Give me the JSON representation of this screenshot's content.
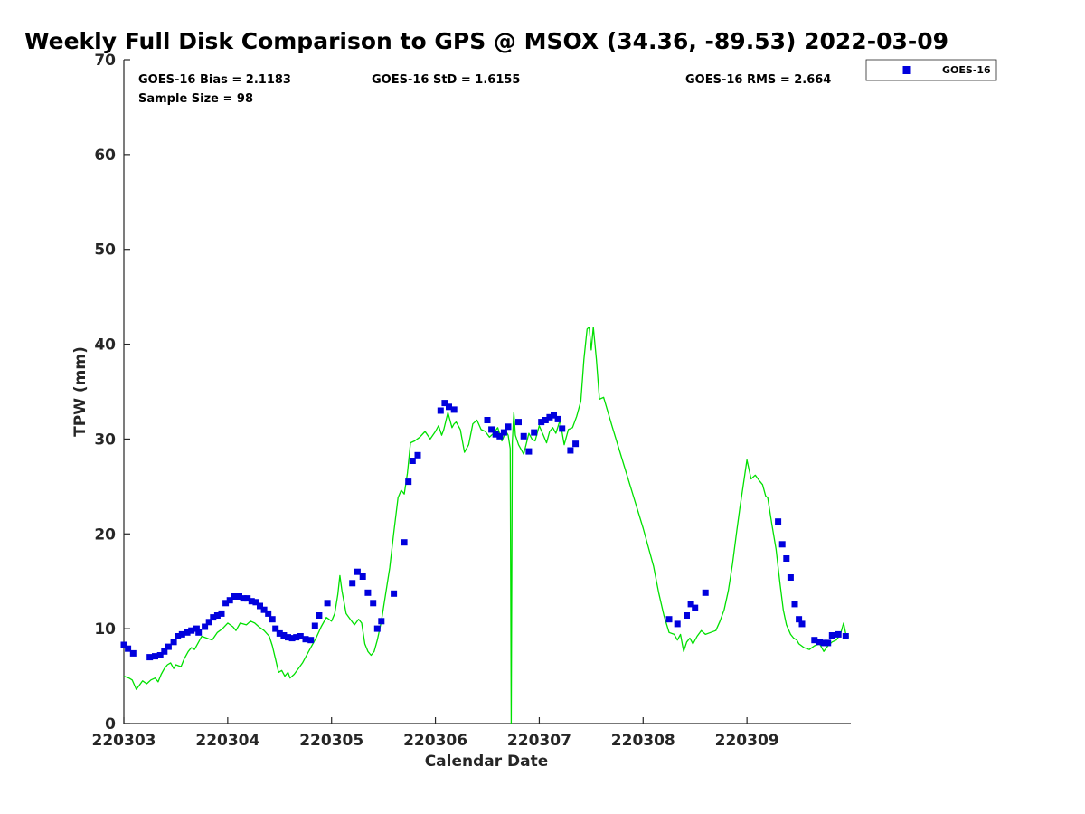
{
  "chart_data": {
    "type": "scatter",
    "title": "Weekly Full Disk Comparison to GPS @ MSOX (34.36, -89.53) 2022-03-09",
    "xlabel": "Calendar Date",
    "ylabel": "TPW (mm)",
    "xlim": [
      220303,
      220310
    ],
    "ylim": [
      0,
      70
    ],
    "xticks": [
      220303,
      220304,
      220305,
      220306,
      220307,
      220308,
      220309
    ],
    "xtick_labels": [
      "220303",
      "220304",
      "220305",
      "220306",
      "220307",
      "220308",
      "220309"
    ],
    "yticks": [
      0,
      10,
      20,
      30,
      40,
      50,
      60,
      70
    ],
    "ytick_labels": [
      "0",
      "10",
      "20",
      "30",
      "40",
      "50",
      "60",
      "70"
    ],
    "grid": false,
    "legend": {
      "placement": "outside-top-right",
      "entries": [
        "GOES-16"
      ]
    },
    "colors": {
      "goes16": "#0000dd",
      "gps": "#00e000"
    },
    "stats": {
      "bias": "GOES-16 Bias = 2.1183",
      "std": "GOES-16 StD = 1.6155",
      "rms": "GOES-16 RMS = 2.664",
      "sample": "Sample Size = 98"
    },
    "series": [
      {
        "name": "GOES-16",
        "style": "square-markers",
        "x": [
          220303.0,
          220303.04,
          220303.09,
          220303.25,
          220303.3,
          220303.35,
          220303.39,
          220303.43,
          220303.48,
          220303.52,
          220303.56,
          220303.61,
          220303.65,
          220303.7,
          220303.72,
          220303.78,
          220303.82,
          220303.86,
          220303.9,
          220303.94,
          220303.98,
          220304.02,
          220304.06,
          220304.11,
          220304.15,
          220304.19,
          220304.23,
          220304.27,
          220304.31,
          220304.35,
          220304.39,
          220304.43,
          220304.46,
          220304.5,
          220304.54,
          220304.58,
          220304.62,
          220304.66,
          220304.7,
          220304.75,
          220304.8,
          220304.84,
          220304.88,
          220304.96,
          220305.2,
          220305.25,
          220305.3,
          220305.35,
          220305.4,
          220305.44,
          220305.48,
          220305.6,
          220305.7,
          220305.74,
          220305.78,
          220305.83,
          220306.05,
          220306.09,
          220306.13,
          220306.18,
          220306.5,
          220306.54,
          220306.58,
          220306.62,
          220306.66,
          220306.7,
          220306.8,
          220306.85,
          220306.9,
          220306.95,
          220307.02,
          220307.06,
          220307.1,
          220307.14,
          220307.18,
          220307.22,
          220307.3,
          220307.35,
          220308.25,
          220308.33,
          220308.42,
          220308.46,
          220308.5,
          220308.6,
          220309.3,
          220309.34,
          220309.38,
          220309.42,
          220309.46,
          220309.5,
          220309.53,
          220309.65,
          220309.7,
          220309.74,
          220309.78,
          220309.82,
          220309.88,
          220309.95
        ],
        "y": [
          8.3,
          7.9,
          7.4,
          7.0,
          7.1,
          7.2,
          7.6,
          8.1,
          8.6,
          9.2,
          9.4,
          9.6,
          9.8,
          10.0,
          9.6,
          10.2,
          10.7,
          11.2,
          11.4,
          11.6,
          12.7,
          13.0,
          13.4,
          13.4,
          13.2,
          13.2,
          12.9,
          12.8,
          12.4,
          12.0,
          11.6,
          11.0,
          10.0,
          9.5,
          9.3,
          9.1,
          9.0,
          9.1,
          9.2,
          8.9,
          8.8,
          10.3,
          11.4,
          12.7,
          14.8,
          16.0,
          15.5,
          13.8,
          12.7,
          10.0,
          10.8,
          13.7,
          19.1,
          25.5,
          27.7,
          28.3,
          33.0,
          33.8,
          33.4,
          33.1,
          32.0,
          31.0,
          30.5,
          30.3,
          30.7,
          31.3,
          31.8,
          30.3,
          28.7,
          30.7,
          31.8,
          32.0,
          32.3,
          32.5,
          32.1,
          31.1,
          28.8,
          29.5,
          11.0,
          10.5,
          11.4,
          12.6,
          12.2,
          13.8,
          21.3,
          18.9,
          17.4,
          15.4,
          12.6,
          11.0,
          10.5,
          8.8,
          8.6,
          8.5,
          8.5,
          9.3,
          9.4,
          9.2
        ]
      },
      {
        "name": "",
        "style": "line",
        "x": [
          220303.0,
          220303.05,
          220303.08,
          220303.12,
          220303.18,
          220303.22,
          220303.26,
          220303.3,
          220303.33,
          220303.36,
          220303.39,
          220303.42,
          220303.45,
          220303.48,
          220303.5,
          220303.55,
          220303.58,
          220303.62,
          220303.65,
          220303.68,
          220303.72,
          220303.75,
          220303.8,
          220303.85,
          220303.9,
          220303.95,
          220304.0,
          220304.05,
          220304.08,
          220304.12,
          220304.18,
          220304.22,
          220304.26,
          220304.3,
          220304.35,
          220304.4,
          220304.43,
          220304.46,
          220304.49,
          220304.52,
          220304.55,
          220304.58,
          220304.6,
          220304.64,
          220304.68,
          220304.72,
          220304.76,
          220304.8,
          220304.85,
          220304.9,
          220304.95,
          220305.0,
          220305.03,
          220305.06,
          220305.08,
          220305.1,
          220305.14,
          220305.18,
          220305.22,
          220305.26,
          220305.29,
          220305.32,
          220305.35,
          220305.38,
          220305.41,
          220305.44,
          220305.48,
          220305.52,
          220305.56,
          220305.6,
          220305.64,
          220305.67,
          220305.7,
          220305.73,
          220305.76,
          220305.8,
          220305.85,
          220305.9,
          220305.95,
          220306.0,
          220306.03,
          220306.06,
          220306.08,
          220306.12,
          220306.16,
          220306.18,
          220306.2,
          220306.24,
          220306.28,
          220306.32,
          220306.36,
          220306.4,
          220306.44,
          220306.48,
          220306.52,
          220306.56,
          220306.6,
          220306.64,
          220306.68,
          220306.7,
          220306.72,
          220306.73,
          220306.74,
          220306.755,
          220306.77,
          220306.8,
          220306.85,
          220306.9,
          220306.93,
          220306.96,
          220307.0,
          220307.04,
          220307.07,
          220307.1,
          220307.13,
          220307.16,
          220307.2,
          220307.24,
          220307.28,
          220307.32,
          220307.36,
          220307.4,
          220307.43,
          220307.46,
          220307.48,
          220307.5,
          220307.52,
          220307.55,
          220307.58,
          220307.62,
          220307.7,
          220307.8,
          220307.9,
          220308.0,
          220308.1,
          220308.15,
          220308.2,
          220308.25,
          220308.3,
          220308.33,
          220308.36,
          220308.39,
          220308.42,
          220308.45,
          220308.48,
          220308.52,
          220308.56,
          220308.6,
          220308.65,
          220308.7,
          220308.74,
          220308.78,
          220308.82,
          220308.86,
          220308.9,
          220308.93,
          220308.96,
          220309.0,
          220309.04,
          220309.08,
          220309.12,
          220309.15,
          220309.18,
          220309.2,
          220309.24,
          220309.28,
          220309.32,
          220309.35,
          220309.38,
          220309.42,
          220309.45,
          220309.48,
          220309.5,
          220309.55,
          220309.6,
          220309.65,
          220309.7,
          220309.74,
          220309.78,
          220309.82,
          220309.86,
          220309.9,
          220309.93,
          220309.96,
          220309.98
        ],
        "y": [
          5.0,
          4.8,
          4.6,
          3.6,
          4.5,
          4.2,
          4.6,
          4.8,
          4.4,
          5.2,
          5.8,
          6.2,
          6.4,
          5.8,
          6.2,
          6.0,
          6.8,
          7.6,
          8.0,
          7.8,
          8.6,
          9.2,
          9.0,
          8.8,
          9.6,
          10.0,
          10.6,
          10.2,
          9.8,
          10.6,
          10.4,
          10.8,
          10.6,
          10.2,
          9.8,
          9.2,
          8.2,
          6.8,
          5.4,
          5.6,
          5.0,
          5.4,
          4.8,
          5.2,
          5.8,
          6.4,
          7.2,
          8.0,
          9.0,
          10.2,
          11.2,
          10.8,
          11.6,
          13.6,
          15.6,
          14.0,
          11.6,
          11.0,
          10.4,
          11.0,
          10.6,
          8.4,
          7.6,
          7.2,
          7.6,
          8.8,
          10.8,
          13.6,
          16.4,
          20.2,
          23.8,
          24.6,
          24.2,
          26.4,
          29.6,
          29.8,
          30.2,
          30.8,
          30.0,
          30.8,
          31.4,
          30.4,
          31.0,
          32.8,
          31.2,
          31.6,
          31.8,
          31.0,
          28.6,
          29.4,
          31.6,
          32.0,
          31.0,
          30.8,
          30.2,
          30.6,
          31.2,
          29.8,
          30.8,
          30.4,
          29.0,
          0.0,
          29.6,
          32.8,
          30.4,
          29.4,
          28.4,
          30.6,
          30.0,
          29.8,
          31.4,
          30.4,
          29.6,
          30.8,
          31.2,
          30.6,
          32.0,
          29.4,
          31.0,
          31.2,
          32.4,
          34.0,
          38.4,
          41.6,
          41.8,
          39.4,
          41.8,
          38.4,
          34.2,
          34.4,
          31.4,
          27.8,
          24.2,
          20.6,
          16.6,
          13.8,
          11.4,
          9.6,
          9.4,
          8.8,
          9.4,
          7.6,
          8.6,
          9.0,
          8.4,
          9.2,
          9.8,
          9.4,
          9.6,
          9.8,
          10.8,
          12.0,
          14.0,
          16.8,
          20.2,
          22.6,
          24.8,
          27.8,
          25.8,
          26.2,
          25.6,
          25.2,
          24.0,
          23.8,
          21.0,
          18.4,
          14.6,
          12.0,
          10.4,
          9.4,
          9.0,
          8.8,
          8.4,
          8.0,
          7.8,
          8.2,
          8.4,
          7.6,
          8.2,
          8.6,
          8.8,
          9.4,
          10.6,
          9.0,
          9.2
        ]
      }
    ]
  }
}
